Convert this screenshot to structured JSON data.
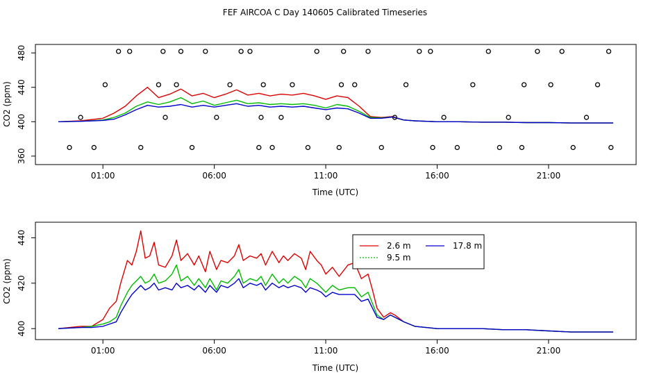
{
  "page_title": "FEF AIRCOA C  Day 140605  Calibrated Timeseries",
  "colors": {
    "s26": "#dd0000",
    "s95": "#00bb00",
    "s178": "#0000cc",
    "frame": "#000000"
  },
  "chart_data": [
    {
      "type": "scatter",
      "title": "FEF AIRCOA C  Day 140605  Calibrated Timeseries",
      "xlabel": "Time (UTC)",
      "ylabel": "CO2 (ppm)",
      "xlim": [
        -1.0,
        23.9
      ],
      "ylim": [
        355,
        485
      ],
      "xticks": [
        {
          "v": 1,
          "label": "01:00"
        },
        {
          "v": 6,
          "label": "06:00"
        },
        {
          "v": 11,
          "label": "11:00"
        },
        {
          "v": 16,
          "label": "16:00"
        },
        {
          "v": 21,
          "label": "21:00"
        }
      ],
      "yticks": [
        {
          "v": 360,
          "label": "360"
        },
        {
          "v": 400,
          "label": "400"
        },
        {
          "v": 440,
          "label": "440"
        },
        {
          "v": 480,
          "label": "480"
        }
      ],
      "series": [
        {
          "name": "2.6 m",
          "color": "#dd0000",
          "x": [
            -1.0,
            0.0,
            1.0,
            1.5,
            2.0,
            2.5,
            3.0,
            3.5,
            4.0,
            4.5,
            5.0,
            5.5,
            6.0,
            6.5,
            7.0,
            7.5,
            8.0,
            8.5,
            9.0,
            9.5,
            10.0,
            10.5,
            11.0,
            11.5,
            12.0,
            12.5,
            13.0,
            13.5,
            14.0,
            14.5,
            15.0,
            16.0,
            17.0,
            18.0,
            19.0,
            20.0,
            21.0,
            22.0,
            23.0,
            23.9
          ],
          "y": [
            400,
            401,
            404,
            410,
            418,
            430,
            440,
            428,
            432,
            438,
            430,
            433,
            428,
            432,
            437,
            431,
            433,
            430,
            432,
            431,
            433,
            430,
            426,
            430,
            428,
            418,
            406,
            405,
            406,
            402,
            401,
            400,
            400,
            399.5,
            399.5,
            399,
            399,
            398.5,
            398.5,
            398.5
          ]
        },
        {
          "name": "9.5 m",
          "color": "#00bb00",
          "x": [
            -1.0,
            0.0,
            1.0,
            1.5,
            2.0,
            2.5,
            3.0,
            3.5,
            4.0,
            4.5,
            5.0,
            5.5,
            6.0,
            6.5,
            7.0,
            7.5,
            8.0,
            8.5,
            9.0,
            9.5,
            10.0,
            10.5,
            11.0,
            11.5,
            12.0,
            12.5,
            13.0,
            13.5,
            14.0,
            14.5,
            15.0,
            16.0,
            17.0,
            18.0,
            19.0,
            20.0,
            21.0,
            22.0,
            23.0,
            23.9
          ],
          "y": [
            400,
            400.5,
            402,
            405,
            410,
            418,
            423,
            420,
            423,
            428,
            421,
            424,
            419,
            422,
            425,
            421,
            422,
            420,
            421,
            420,
            421,
            419,
            416,
            420,
            418,
            412,
            405,
            404.5,
            405.5,
            402,
            401,
            400,
            400,
            399.5,
            399.5,
            399,
            399,
            398.5,
            398.5,
            398.5
          ]
        },
        {
          "name": "17.8 m",
          "color": "#0000cc",
          "x": [
            -1.0,
            0.0,
            1.0,
            1.5,
            2.0,
            2.5,
            3.0,
            3.5,
            4.0,
            4.5,
            5.0,
            5.5,
            6.0,
            6.5,
            7.0,
            7.5,
            8.0,
            8.5,
            9.0,
            9.5,
            10.0,
            10.5,
            11.0,
            11.5,
            12.0,
            12.5,
            13.0,
            13.5,
            14.0,
            14.5,
            15.0,
            16.0,
            17.0,
            18.0,
            19.0,
            20.0,
            21.0,
            22.0,
            23.0,
            23.9
          ],
          "y": [
            400,
            400.5,
            401.5,
            403,
            408,
            414,
            419,
            417,
            418,
            420,
            417,
            419,
            417,
            419,
            421,
            418,
            419,
            417,
            418,
            417,
            418,
            416,
            414,
            416,
            415,
            410,
            404,
            404,
            405.5,
            402,
            401,
            400,
            400,
            399.5,
            399.5,
            399,
            399,
            398.5,
            398.5,
            398.5
          ]
        },
        {
          "name": "markers",
          "color": "#000000",
          "marker": "circle",
          "x": [
            -0.5,
            0.0,
            0.6,
            1.1,
            1.7,
            2.2,
            2.7,
            3.5,
            3.7,
            3.8,
            4.3,
            4.5,
            5.0,
            5.6,
            6.1,
            6.7,
            7.2,
            7.6,
            8.0,
            8.1,
            8.2,
            8.6,
            9.0,
            9.5,
            10.2,
            10.6,
            11.1,
            11.6,
            11.7,
            11.8,
            12.3,
            12.9,
            13.5,
            14.1,
            14.6,
            15.2,
            15.7,
            15.8,
            16.3,
            16.9,
            17.6,
            18.3,
            18.8,
            19.2,
            19.8,
            19.9,
            20.5,
            21.1,
            21.6,
            22.1,
            22.7,
            23.2,
            23.7,
            23.8
          ],
          "y": [
            370,
            405,
            370,
            443,
            500,
            500,
            370,
            443,
            500,
            405,
            443,
            500,
            370,
            500,
            405,
            443,
            500,
            500,
            370,
            405,
            443,
            370,
            405,
            443,
            370,
            500,
            405,
            370,
            443,
            500,
            443,
            500,
            370,
            405,
            443,
            500,
            500,
            370,
            405,
            370,
            443,
            500,
            370,
            405,
            370,
            443,
            500,
            443,
            500,
            370,
            405,
            443,
            500,
            370
          ]
        }
      ]
    },
    {
      "type": "line",
      "xlabel": "Time (UTC)",
      "ylabel": "CO2 (ppm)",
      "xlim": [
        -1.0,
        23.9
      ],
      "ylim": [
        397,
        445
      ],
      "xticks": [
        {
          "v": 1,
          "label": "01:00"
        },
        {
          "v": 6,
          "label": "06:00"
        },
        {
          "v": 11,
          "label": "11:00"
        },
        {
          "v": 16,
          "label": "16:00"
        },
        {
          "v": 21,
          "label": "21:00"
        }
      ],
      "yticks": [
        {
          "v": 400,
          "label": "400"
        },
        {
          "v": 420,
          "label": "420"
        },
        {
          "v": 440,
          "label": "440"
        }
      ],
      "legend": {
        "position": "top-center",
        "entries": [
          "2.6 m",
          "9.5 m",
          "17.8 m"
        ]
      },
      "series": [
        {
          "name": "2.6 m",
          "color": "#dd0000",
          "x": [
            -1.0,
            0.0,
            0.5,
            1.0,
            1.3,
            1.6,
            1.8,
            2.1,
            2.3,
            2.5,
            2.7,
            2.9,
            3.1,
            3.3,
            3.5,
            3.8,
            4.1,
            4.3,
            4.5,
            4.8,
            5.1,
            5.3,
            5.6,
            5.8,
            6.1,
            6.3,
            6.6,
            6.9,
            7.1,
            7.3,
            7.6,
            7.9,
            8.1,
            8.3,
            8.6,
            8.9,
            9.1,
            9.3,
            9.6,
            9.9,
            10.1,
            10.3,
            10.6,
            10.8,
            11.0,
            11.3,
            11.6,
            12.0,
            12.3,
            12.6,
            12.9,
            13.1,
            13.3,
            13.6,
            13.9,
            14.1,
            14.5,
            15.0,
            15.5,
            16.0,
            17.0,
            18.0,
            19.0,
            20.0,
            21.0,
            22.0,
            23.0,
            23.9
          ],
          "y": [
            400,
            401,
            401,
            404,
            409,
            412,
            420,
            430,
            428,
            434,
            443,
            431,
            432,
            438,
            428,
            427,
            432,
            439,
            430,
            433,
            428,
            432,
            425,
            434,
            426,
            430,
            429,
            432,
            437,
            430,
            432,
            431,
            433,
            428,
            434,
            429,
            432,
            430,
            433,
            431,
            426,
            434,
            430,
            428,
            424,
            427,
            423,
            428,
            429,
            422,
            424,
            417,
            409,
            405,
            407,
            406,
            403,
            401,
            400.5,
            400,
            400,
            400,
            399.5,
            399.5,
            399,
            398.5,
            398.5,
            398.5
          ]
        },
        {
          "name": "9.5 m",
          "color": "#00bb00",
          "x": [
            -1.0,
            0.0,
            0.5,
            1.0,
            1.3,
            1.6,
            1.8,
            2.1,
            2.3,
            2.5,
            2.7,
            2.9,
            3.1,
            3.3,
            3.5,
            3.8,
            4.1,
            4.3,
            4.5,
            4.8,
            5.1,
            5.3,
            5.6,
            5.8,
            6.1,
            6.3,
            6.6,
            6.9,
            7.1,
            7.3,
            7.6,
            7.9,
            8.1,
            8.3,
            8.6,
            8.9,
            9.1,
            9.3,
            9.6,
            9.9,
            10.1,
            10.3,
            10.6,
            10.8,
            11.0,
            11.3,
            11.6,
            12.0,
            12.3,
            12.6,
            12.9,
            13.1,
            13.3,
            13.6,
            13.9,
            14.1,
            14.5,
            15.0,
            15.5,
            16.0,
            17.0,
            18.0,
            19.0,
            20.0,
            21.0,
            22.0,
            23.0,
            23.9
          ],
          "y": [
            400,
            400.5,
            401,
            402,
            403,
            405,
            410,
            416,
            419,
            421,
            423,
            420,
            421,
            424,
            420,
            421,
            424,
            428,
            421,
            423,
            419,
            422,
            418,
            422,
            417,
            421,
            420,
            423,
            426,
            420,
            422,
            421,
            423,
            419,
            424,
            420,
            422,
            420,
            423,
            421,
            418,
            422,
            420,
            418,
            416,
            419,
            417,
            418,
            418,
            414,
            416,
            411,
            406,
            404,
            406,
            405,
            403,
            401,
            400.5,
            400,
            400,
            400,
            399.5,
            399.5,
            399,
            398.5,
            398.5,
            398.5
          ]
        },
        {
          "name": "17.8 m",
          "color": "#0000cc",
          "x": [
            -1.0,
            0.0,
            0.5,
            1.0,
            1.3,
            1.6,
            1.8,
            2.1,
            2.3,
            2.5,
            2.7,
            2.9,
            3.1,
            3.3,
            3.5,
            3.8,
            4.1,
            4.3,
            4.5,
            4.8,
            5.1,
            5.3,
            5.6,
            5.8,
            6.1,
            6.3,
            6.6,
            6.9,
            7.1,
            7.3,
            7.6,
            7.9,
            8.1,
            8.3,
            8.6,
            8.9,
            9.1,
            9.3,
            9.6,
            9.9,
            10.1,
            10.3,
            10.6,
            10.8,
            11.0,
            11.3,
            11.6,
            12.0,
            12.3,
            12.6,
            12.9,
            13.1,
            13.3,
            13.6,
            13.9,
            14.1,
            14.5,
            15.0,
            15.5,
            16.0,
            17.0,
            18.0,
            19.0,
            20.0,
            21.0,
            22.0,
            23.0,
            23.9
          ],
          "y": [
            400,
            400.5,
            400.5,
            401,
            402,
            403,
            407,
            412,
            415,
            417,
            419,
            417,
            418,
            420,
            417,
            418,
            417,
            420,
            418,
            419,
            417,
            419,
            416,
            419,
            416,
            419,
            418,
            420,
            422,
            418,
            420,
            419,
            420,
            417,
            420,
            418,
            419,
            418,
            419,
            418,
            416,
            418,
            417,
            416,
            414,
            416,
            415,
            415,
            415,
            412,
            413,
            409,
            405,
            404,
            406,
            405,
            403,
            401,
            400.5,
            400,
            400,
            400,
            399.5,
            399.5,
            399,
            398.5,
            398.5,
            398.5
          ]
        }
      ]
    }
  ]
}
